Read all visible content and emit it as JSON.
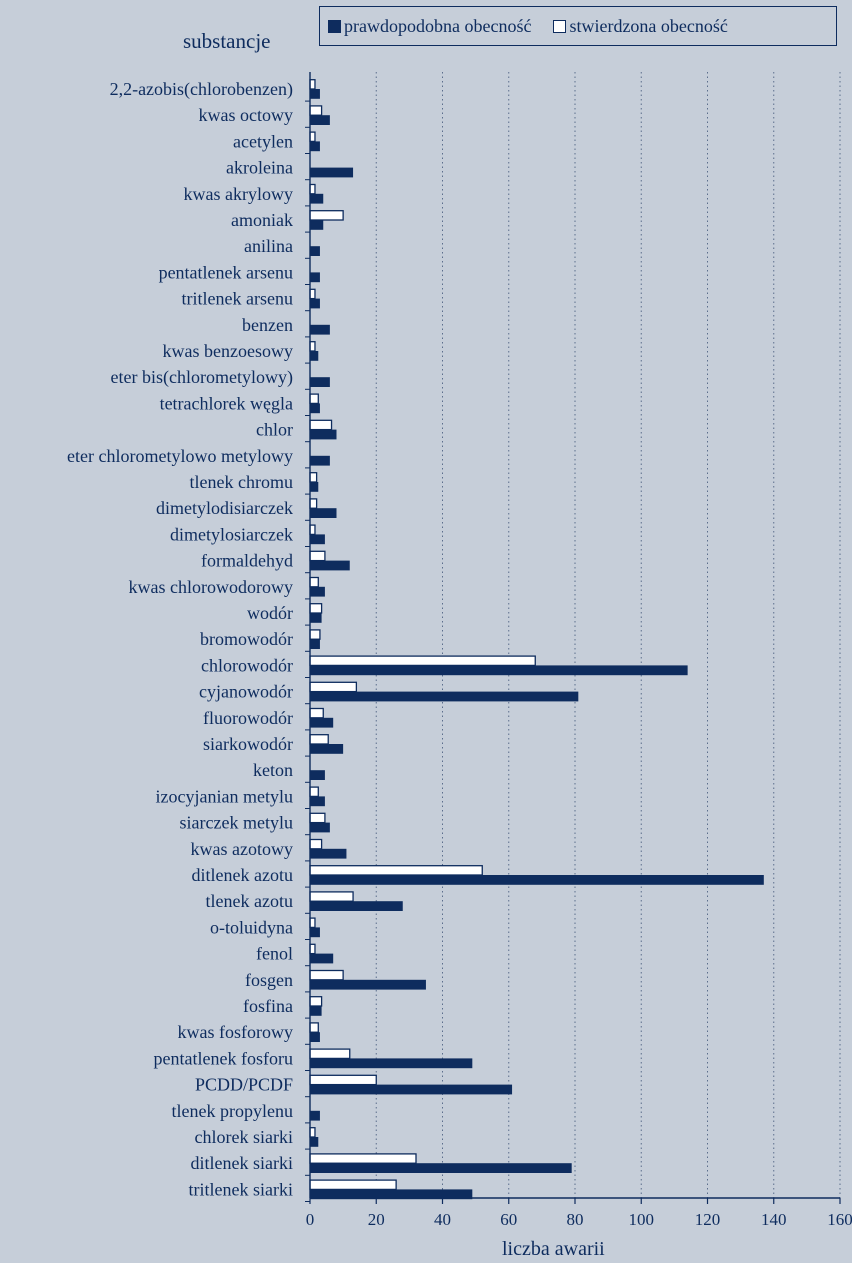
{
  "chart_data": {
    "type": "bar",
    "orientation": "horizontal",
    "ylabel": "substancje",
    "xlabel": "liczba awarii",
    "xlim": [
      0,
      160
    ],
    "xticks": [
      0,
      20,
      40,
      60,
      80,
      100,
      120,
      140,
      160
    ],
    "grid": "vertical dotted",
    "legend_position": "top",
    "categories": [
      "2,2-azobis(chlorobenzen)",
      "kwas octowy",
      "acetylen",
      "akroleina",
      "kwas akrylowy",
      "amoniak",
      "anilina",
      "pentatlenek arsenu",
      "tritlenek arsenu",
      "benzen",
      "kwas benzoesowy",
      "eter bis(chlorometylowy)",
      "tetrachlorek węgla",
      "chlor",
      "eter chlorometylowo metylowy",
      "tlenek chromu",
      "dimetylodisiarczek",
      "dimetylosiarczek",
      "formaldehyd",
      "kwas chlorowodorowy",
      "wodór",
      "bromowodór",
      "chlorowodór",
      "cyjanowodór",
      "fluorowodór",
      "siarkowodór",
      "keton",
      "izocyjanian metylu",
      "siarczek metylu",
      "kwas azotowy",
      "ditlenek azotu",
      "tlenek azotu",
      "o-toluidyna",
      "fenol",
      "fosgen",
      "fosfina",
      "kwas fosforowy",
      "pentatlenek fosforu",
      "PCDD/PCDF",
      "tlenek propylenu",
      "chlorek siarki",
      "ditlenek siarki",
      "tritlenek siarki"
    ],
    "series": [
      {
        "name": "prawdopodobna obecność",
        "color": "#0e2c5e",
        "fill": "solid",
        "values": [
          3,
          6,
          3,
          13,
          4,
          4,
          3,
          3,
          3,
          6,
          2.5,
          6,
          3,
          8,
          6,
          2.5,
          8,
          4.5,
          12,
          4.5,
          3.5,
          3,
          114,
          81,
          7,
          10,
          4.5,
          4.5,
          6,
          11,
          137,
          28,
          3,
          7,
          35,
          3.5,
          3,
          49,
          61,
          3,
          2.5,
          79,
          49
        ]
      },
      {
        "name": "stwierdzona obecność",
        "color": "#ffffff",
        "fill": "outline",
        "values": [
          1.5,
          3.5,
          1.5,
          0,
          1.5,
          10,
          0,
          0,
          1.5,
          0,
          1.5,
          0,
          2.5,
          6.5,
          0,
          2,
          2,
          1.5,
          4.5,
          2.5,
          3.5,
          3,
          68,
          14,
          4,
          5.5,
          0,
          2.5,
          4.5,
          3.5,
          52,
          13,
          1.5,
          1.5,
          10,
          3.5,
          2.5,
          12,
          20,
          0,
          1.5,
          32,
          26
        ]
      }
    ]
  }
}
